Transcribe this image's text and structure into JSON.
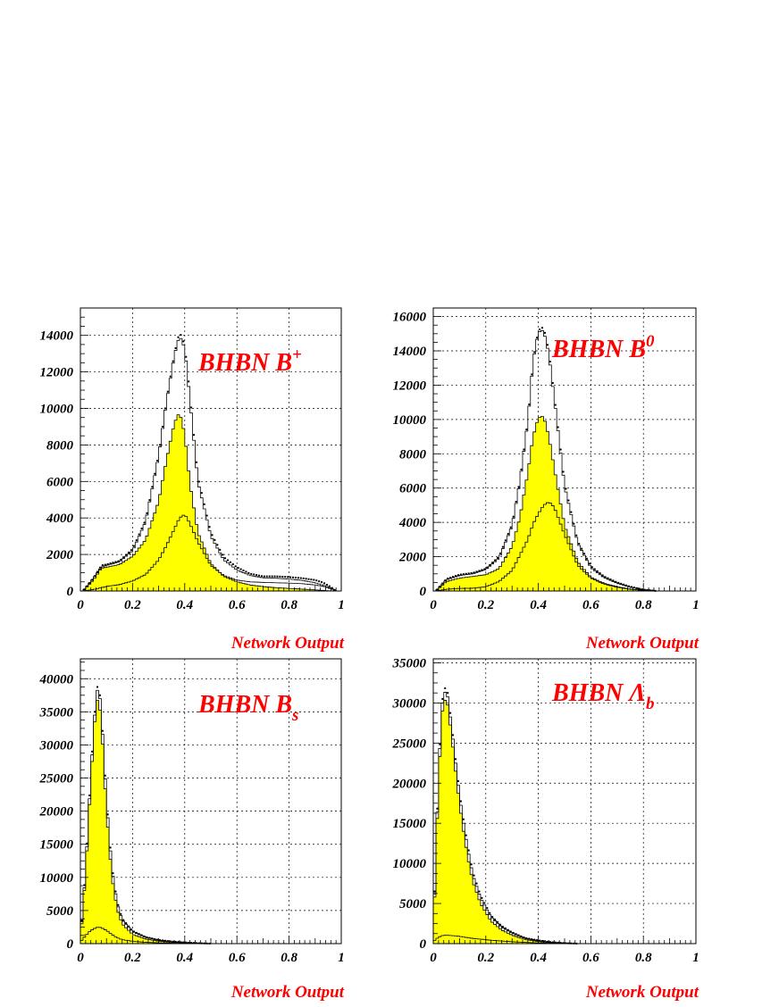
{
  "chart_data": [
    {
      "type": "histogram",
      "title": {
        "main": "BHBN B",
        "sup": "+",
        "sub": ""
      },
      "xlabel": "Network Output",
      "xlim": [
        0,
        1
      ],
      "ylim": [
        0,
        15500
      ],
      "xticks": [
        0,
        0.2,
        0.4,
        0.6,
        0.8,
        1
      ],
      "xtick_labels": [
        "0",
        "0.2",
        "0.4",
        "0.6",
        "0.8",
        "1"
      ],
      "yticks": [
        0,
        2000,
        4000,
        6000,
        8000,
        10000,
        12000,
        14000
      ],
      "ytick_labels": [
        "0",
        "2000",
        "4000",
        "6000",
        "8000",
        "10000",
        "12000",
        "14000"
      ],
      "grid": true,
      "series": [
        {
          "role": "data-points",
          "x": [
            0.01,
            0.05,
            0.08,
            0.1,
            0.15,
            0.2,
            0.25,
            0.3,
            0.33,
            0.36,
            0.38,
            0.4,
            0.42,
            0.45,
            0.5,
            0.55,
            0.6,
            0.65,
            0.7,
            0.75,
            0.8,
            0.85,
            0.9,
            0.93,
            0.96,
            0.98
          ],
          "y": [
            0,
            700,
            1400,
            1450,
            1650,
            2300,
            3900,
            7500,
            10500,
            13000,
            14200,
            13500,
            10800,
            6300,
            3200,
            1850,
            1300,
            950,
            800,
            800,
            760,
            700,
            600,
            460,
            220,
            0
          ]
        },
        {
          "role": "total-histogram",
          "x": [
            0.01,
            0.05,
            0.08,
            0.1,
            0.15,
            0.2,
            0.25,
            0.3,
            0.33,
            0.36,
            0.38,
            0.4,
            0.42,
            0.45,
            0.5,
            0.55,
            0.6,
            0.65,
            0.7,
            0.75,
            0.8,
            0.85,
            0.9,
            0.93,
            0.96,
            0.98
          ],
          "y": [
            0,
            700,
            1300,
            1400,
            1600,
            2200,
            3800,
            7400,
            10400,
            12900,
            14000,
            13300,
            10500,
            6000,
            3000,
            1700,
            1150,
            850,
            720,
            700,
            650,
            580,
            450,
            320,
            150,
            0
          ]
        },
        {
          "role": "signal-filled",
          "color": "#ffff00",
          "x": [
            0.01,
            0.05,
            0.08,
            0.1,
            0.15,
            0.2,
            0.25,
            0.3,
            0.33,
            0.36,
            0.38,
            0.4,
            0.42,
            0.45,
            0.5,
            0.55,
            0.6,
            0.65,
            0.7,
            0.75,
            0.8,
            0.85,
            0.9,
            0.93,
            0.96,
            0.98
          ],
          "y": [
            0,
            600,
            1250,
            1300,
            1450,
            1900,
            2800,
            4900,
            7200,
            9200,
            9800,
            8600,
            5900,
            3200,
            1500,
            800,
            500,
            330,
            240,
            180,
            140,
            100,
            60,
            30,
            10,
            0
          ]
        },
        {
          "role": "background-histogram",
          "x": [
            0.01,
            0.05,
            0.08,
            0.1,
            0.15,
            0.2,
            0.25,
            0.3,
            0.33,
            0.36,
            0.38,
            0.4,
            0.42,
            0.45,
            0.5,
            0.55,
            0.6,
            0.65,
            0.7,
            0.75,
            0.8,
            0.85,
            0.9,
            0.93,
            0.96,
            0.98
          ],
          "y": [
            0,
            80,
            180,
            250,
            350,
            550,
            900,
            1700,
            2500,
            3400,
            4000,
            4200,
            3700,
            2700,
            1400,
            850,
            600,
            500,
            470,
            450,
            430,
            400,
            330,
            260,
            120,
            0
          ]
        }
      ]
    },
    {
      "type": "histogram",
      "title": {
        "main": "BHBN B",
        "sup": "0",
        "sub": ""
      },
      "xlabel": "Network Output",
      "xlim": [
        0,
        1
      ],
      "ylim": [
        0,
        16500
      ],
      "xticks": [
        0,
        0.2,
        0.4,
        0.6,
        0.8,
        1
      ],
      "xtick_labels": [
        "0",
        "0.2",
        "0.4",
        "0.6",
        "0.8",
        "1"
      ],
      "yticks": [
        0,
        2000,
        4000,
        6000,
        8000,
        10000,
        12000,
        14000,
        16000
      ],
      "ytick_labels": [
        "0",
        "2000",
        "4000",
        "6000",
        "8000",
        "10000",
        "12000",
        "14000",
        "16000"
      ],
      "grid": true,
      "series": [
        {
          "role": "data-points",
          "x": [
            0.01,
            0.05,
            0.1,
            0.15,
            0.2,
            0.25,
            0.3,
            0.33,
            0.36,
            0.38,
            0.4,
            0.42,
            0.44,
            0.46,
            0.5,
            0.55,
            0.6,
            0.65,
            0.7,
            0.75,
            0.8,
            0.85
          ],
          "y": [
            0,
            700,
            950,
            1050,
            1300,
            2000,
            3900,
            6500,
            10000,
            13500,
            15200,
            15400,
            14000,
            11500,
            6300,
            2900,
            1450,
            850,
            500,
            250,
            80,
            0
          ]
        },
        {
          "role": "total-histogram",
          "x": [
            0.01,
            0.05,
            0.1,
            0.15,
            0.2,
            0.25,
            0.3,
            0.33,
            0.36,
            0.38,
            0.4,
            0.42,
            0.44,
            0.46,
            0.5,
            0.55,
            0.6,
            0.65,
            0.7,
            0.75,
            0.8,
            0.85
          ],
          "y": [
            0,
            650,
            900,
            1000,
            1250,
            1900,
            3800,
            6400,
            9900,
            13400,
            15100,
            15200,
            13800,
            11300,
            6100,
            2800,
            1350,
            780,
            450,
            220,
            70,
            0
          ]
        },
        {
          "role": "signal-filled",
          "color": "#ffff00",
          "x": [
            0.01,
            0.05,
            0.1,
            0.15,
            0.2,
            0.25,
            0.3,
            0.33,
            0.36,
            0.38,
            0.4,
            0.42,
            0.44,
            0.46,
            0.5,
            0.55,
            0.6,
            0.65,
            0.7,
            0.75,
            0.8,
            0.85
          ],
          "y": [
            0,
            550,
            750,
            850,
            950,
            1300,
            2600,
            4300,
            6900,
            9000,
            10100,
            10200,
            9000,
            7200,
            3800,
            1700,
            800,
            450,
            250,
            110,
            30,
            0
          ]
        },
        {
          "role": "background-histogram",
          "x": [
            0.01,
            0.05,
            0.1,
            0.15,
            0.2,
            0.25,
            0.3,
            0.33,
            0.36,
            0.38,
            0.4,
            0.42,
            0.44,
            0.46,
            0.5,
            0.55,
            0.6,
            0.65,
            0.7,
            0.75,
            0.8,
            0.85
          ],
          "y": [
            0,
            100,
            150,
            160,
            250,
            550,
            1200,
            2100,
            3000,
            3900,
            4500,
            5000,
            5200,
            4900,
            3300,
            1500,
            750,
            400,
            220,
            100,
            30,
            0
          ]
        }
      ]
    },
    {
      "type": "histogram",
      "title": {
        "main": "BHBN B",
        "sup": "",
        "sub": "s"
      },
      "xlabel": "Network Output",
      "xlim": [
        0,
        1
      ],
      "ylim": [
        0,
        43000
      ],
      "xticks": [
        0,
        0.2,
        0.4,
        0.6,
        0.8,
        1
      ],
      "xtick_labels": [
        "0",
        "0.2",
        "0.4",
        "0.6",
        "0.8",
        "1"
      ],
      "yticks": [
        0,
        5000,
        10000,
        15000,
        20000,
        25000,
        30000,
        35000,
        40000
      ],
      "ytick_labels": [
        "0",
        "5000",
        "10000",
        "15000",
        "20000",
        "25000",
        "30000",
        "35000",
        "40000"
      ],
      "grid": true,
      "series": [
        {
          "role": "data-points",
          "x": [
            0.005,
            0.02,
            0.04,
            0.06,
            0.07,
            0.08,
            0.1,
            0.12,
            0.14,
            0.16,
            0.2,
            0.25,
            0.3,
            0.35,
            0.4,
            0.45,
            0.5
          ],
          "y": [
            3500,
            11500,
            26000,
            38000,
            39500,
            35500,
            22000,
            12000,
            6500,
            3800,
            1900,
            1000,
            550,
            320,
            180,
            70,
            0
          ]
        },
        {
          "role": "total-histogram",
          "x": [
            0.005,
            0.02,
            0.04,
            0.06,
            0.07,
            0.08,
            0.1,
            0.12,
            0.14,
            0.16,
            0.2,
            0.25,
            0.3,
            0.35,
            0.4,
            0.45,
            0.5
          ],
          "y": [
            3300,
            11000,
            25500,
            37500,
            39000,
            35000,
            21500,
            11500,
            6200,
            3600,
            1800,
            950,
            500,
            300,
            160,
            60,
            0
          ]
        },
        {
          "role": "signal-filled",
          "color": "#ffff00",
          "x": [
            0.005,
            0.02,
            0.04,
            0.06,
            0.07,
            0.08,
            0.1,
            0.12,
            0.14,
            0.16,
            0.2,
            0.25,
            0.3,
            0.35,
            0.4,
            0.45,
            0.5
          ],
          "y": [
            3000,
            10500,
            24500,
            36500,
            37000,
            33500,
            20000,
            10300,
            5300,
            3000,
            1400,
            700,
            350,
            200,
            100,
            30,
            0
          ]
        },
        {
          "role": "background-histogram",
          "x": [
            0.005,
            0.02,
            0.04,
            0.06,
            0.07,
            0.08,
            0.1,
            0.12,
            0.14,
            0.16,
            0.2,
            0.25,
            0.3,
            0.35,
            0.4,
            0.45,
            0.5
          ],
          "y": [
            500,
            1200,
            2000,
            2400,
            2500,
            2400,
            2000,
            1400,
            900,
            600,
            350,
            200,
            120,
            70,
            40,
            15,
            0
          ]
        }
      ]
    },
    {
      "type": "histogram",
      "title": {
        "main": "BHBN Λ",
        "sup": "",
        "sub": "b"
      },
      "xlabel": "Network Output",
      "xlim": [
        0,
        1
      ],
      "ylim": [
        0,
        35500
      ],
      "xticks": [
        0,
        0.2,
        0.4,
        0.6,
        0.8,
        1
      ],
      "xtick_labels": [
        "0",
        "0.2",
        "0.4",
        "0.6",
        "0.8",
        "1"
      ],
      "yticks": [
        0,
        5000,
        10000,
        15000,
        20000,
        25000,
        30000,
        35000
      ],
      "ytick_labels": [
        "0",
        "5000",
        "10000",
        "15000",
        "20000",
        "25000",
        "30000",
        "35000"
      ],
      "grid": true,
      "series": [
        {
          "role": "data-points",
          "x": [
            0.005,
            0.02,
            0.035,
            0.05,
            0.07,
            0.09,
            0.11,
            0.13,
            0.15,
            0.18,
            0.22,
            0.26,
            0.3,
            0.35,
            0.4,
            0.45,
            0.5,
            0.55
          ],
          "y": [
            6500,
            22000,
            30500,
            32500,
            27500,
            21500,
            16500,
            12500,
            9000,
            6000,
            3500,
            2200,
            1400,
            700,
            400,
            180,
            60,
            0
          ]
        },
        {
          "role": "total-histogram",
          "x": [
            0.005,
            0.02,
            0.035,
            0.05,
            0.07,
            0.09,
            0.11,
            0.13,
            0.15,
            0.18,
            0.22,
            0.26,
            0.3,
            0.35,
            0.4,
            0.45,
            0.5,
            0.55
          ],
          "y": [
            6200,
            21500,
            30000,
            32000,
            27000,
            21000,
            16000,
            12000,
            8600,
            5700,
            3300,
            2050,
            1300,
            650,
            360,
            160,
            50,
            0
          ]
        },
        {
          "role": "signal-filled",
          "color": "#ffff00",
          "x": [
            0.005,
            0.02,
            0.035,
            0.05,
            0.07,
            0.09,
            0.11,
            0.13,
            0.15,
            0.18,
            0.22,
            0.26,
            0.3,
            0.35,
            0.4,
            0.45,
            0.5,
            0.55
          ],
          "y": [
            5800,
            20500,
            29000,
            31000,
            26000,
            20000,
            15000,
            11000,
            7800,
            5000,
            2800,
            1700,
            1050,
            500,
            260,
            110,
            30,
            0
          ]
        },
        {
          "role": "background-histogram",
          "x": [
            0.005,
            0.02,
            0.035,
            0.05,
            0.07,
            0.09,
            0.11,
            0.13,
            0.15,
            0.18,
            0.22,
            0.26,
            0.3,
            0.35,
            0.4,
            0.45,
            0.5,
            0.55
          ],
          "y": [
            400,
            800,
            1000,
            1050,
            1000,
            950,
            850,
            750,
            650,
            550,
            420,
            320,
            240,
            150,
            90,
            45,
            15,
            0
          ]
        }
      ]
    }
  ]
}
